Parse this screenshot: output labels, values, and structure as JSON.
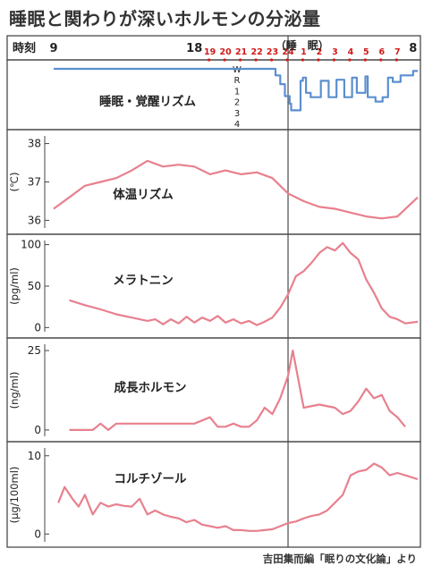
{
  "title": "睡眠と関わりが深いホルモンの分泌量",
  "credit": "吉田集而編「眠りの文化論」より",
  "colors": {
    "frame": "#4a4a4a",
    "sleep_line": "#5b8fcf",
    "hormone_line": "#e8808e",
    "red_tick": "#d01a1a"
  },
  "time_axis": {
    "label": "時刻",
    "sleep_label": "（睡　眠）",
    "black_ticks": [
      {
        "label": "9",
        "t": 9
      },
      {
        "label": "18",
        "t": 18
      },
      {
        "label": "8",
        "t": 32
      }
    ],
    "red_ticks": [
      {
        "label": "19",
        "t": 19
      },
      {
        "label": "20",
        "t": 20
      },
      {
        "label": "21",
        "t": 21
      },
      {
        "label": "22",
        "t": 22
      },
      {
        "label": "23",
        "t": 23
      },
      {
        "label": "24",
        "t": 24
      },
      {
        "label": "1",
        "t": 25
      },
      {
        "label": "2",
        "t": 26
      },
      {
        "label": "3",
        "t": 27
      },
      {
        "label": "4",
        "t": 28
      },
      {
        "label": "5",
        "t": 29
      },
      {
        "label": "6",
        "t": 30
      },
      {
        "label": "7",
        "t": 31
      }
    ],
    "sleep_start": 24
  },
  "chart_data": [
    {
      "type": "line",
      "panel": "sleep",
      "label": "睡眠・覚醒リズム",
      "ylabel": "",
      "stage_labels": [
        "W",
        "R",
        "1",
        "2",
        "3",
        "4"
      ],
      "ylim": [
        0,
        5
      ],
      "x": [
        9,
        23.2,
        23.2,
        23.5,
        23.5,
        23.8,
        23.8,
        24.1,
        24.1,
        24.2,
        24.2,
        24.8,
        24.8,
        24.95,
        24.95,
        25.15,
        25.15,
        25.45,
        25.45,
        25.6,
        25.6,
        26.1,
        26.1,
        26.6,
        26.6,
        27.1,
        27.1,
        27.6,
        27.6,
        28.1,
        28.1,
        28.4,
        28.4,
        28.95,
        28.95,
        29.1,
        29.1,
        29.6,
        29.6,
        30.05,
        30.05,
        30.4,
        30.4,
        30.7,
        30.7,
        31.2,
        31.2,
        32.0,
        32.0,
        32.3
      ],
      "values": [
        0,
        0,
        0.6,
        0.6,
        1.4,
        1.4,
        2.5,
        2.5,
        3.2,
        3.2,
        3.8,
        3.8,
        1.1,
        1.1,
        0.8,
        0.8,
        2.2,
        2.2,
        2.6,
        2.6,
        2.6,
        2.6,
        1.1,
        1.1,
        2.6,
        2.6,
        1.0,
        1.0,
        2.6,
        2.6,
        0.8,
        0.8,
        2.2,
        2.2,
        0.7,
        0.7,
        2.6,
        2.6,
        3.0,
        3.0,
        2.6,
        2.6,
        0.8,
        0.8,
        1.2,
        1.2,
        0.6,
        0.6,
        0.2,
        0.2
      ]
    },
    {
      "type": "line",
      "panel": "temperature",
      "label": "体温リズム",
      "ylabel": "(℃)",
      "yticks": [
        36,
        37,
        38
      ],
      "ylim": [
        35.8,
        38.2
      ],
      "x": [
        9,
        10,
        11,
        12,
        13,
        14,
        15,
        16,
        17,
        18,
        19,
        20,
        21,
        22,
        23,
        24,
        25,
        26,
        27,
        28,
        29,
        30,
        31,
        32.3
      ],
      "values": [
        36.3,
        36.6,
        36.9,
        37.0,
        37.1,
        37.3,
        37.55,
        37.4,
        37.45,
        37.4,
        37.2,
        37.3,
        37.2,
        37.25,
        37.1,
        36.7,
        36.5,
        36.35,
        36.3,
        36.2,
        36.1,
        36.05,
        36.1,
        36.6
      ]
    },
    {
      "type": "line",
      "panel": "melatonin",
      "label": "メラトニン",
      "ylabel": "(pg/ml)",
      "yticks": [
        0,
        50,
        100
      ],
      "ylim": [
        -5,
        105
      ],
      "x": [
        10,
        11,
        12,
        13,
        14,
        15,
        15.5,
        16,
        16.5,
        17,
        17.5,
        18,
        18.5,
        19,
        19.5,
        20,
        20.5,
        21,
        21.5,
        22,
        22.5,
        23,
        23.5,
        24,
        24.5,
        25,
        25.5,
        26,
        26.5,
        27,
        27.5,
        28,
        28.5,
        29,
        29.5,
        30,
        30.5,
        31,
        31.5,
        32.3
      ],
      "values": [
        33,
        27,
        22,
        16,
        12,
        8,
        10,
        4,
        10,
        5,
        13,
        6,
        12,
        8,
        14,
        6,
        10,
        5,
        8,
        3,
        7,
        12,
        24,
        40,
        62,
        68,
        78,
        90,
        97,
        93,
        102,
        90,
        82,
        58,
        42,
        23,
        13,
        10,
        5,
        7
      ]
    },
    {
      "type": "line",
      "panel": "growth_hormone",
      "label": "成長ホルモン",
      "ylabel": "(ng/ml)",
      "yticks": [
        0,
        25
      ],
      "ylim": [
        -2,
        27
      ],
      "x": [
        10,
        11,
        11.5,
        12,
        12.5,
        13,
        14,
        15,
        16,
        17,
        18,
        19,
        19.5,
        20,
        20.5,
        21,
        21.5,
        22,
        22.5,
        23,
        23.5,
        24,
        24.3,
        25,
        26,
        27,
        27.5,
        28,
        28.5,
        29,
        29.5,
        30,
        30.5,
        31,
        31.5
      ],
      "values": [
        0,
        0,
        0,
        2,
        0,
        2,
        2,
        2,
        2,
        2,
        2,
        4,
        1,
        1,
        2,
        1,
        1,
        3,
        7,
        5,
        10,
        17,
        25,
        7,
        8,
        7,
        5,
        6,
        9,
        13,
        10,
        11,
        6,
        4,
        1
      ]
    },
    {
      "type": "line",
      "panel": "cortisol",
      "label": "コルチゾール",
      "ylabel": "(μg/100ml)",
      "yticks": [
        0,
        10
      ],
      "ylim": [
        -1,
        11
      ],
      "x": [
        9.3,
        9.7,
        10.2,
        10.6,
        11,
        11.5,
        12,
        12.5,
        13,
        13.5,
        14,
        14.5,
        15,
        15.5,
        16,
        16.5,
        17,
        17.5,
        18,
        18.5,
        19,
        19.5,
        20,
        20.5,
        21,
        21.5,
        22,
        22.5,
        23,
        23.5,
        24,
        24.5,
        25,
        25.5,
        26,
        26.5,
        27,
        27.5,
        28,
        28.5,
        29,
        29.5,
        30,
        30.5,
        31,
        31.5,
        32.3
      ],
      "values": [
        4,
        6,
        4.5,
        3.5,
        5,
        2.5,
        4,
        3.5,
        3.8,
        3.6,
        3.5,
        4.5,
        2.5,
        3,
        2.5,
        2.2,
        2,
        1.5,
        1.8,
        1.2,
        1,
        0.8,
        1,
        0.5,
        0.5,
        0.4,
        0.4,
        0.5,
        0.6,
        1,
        1.4,
        1.6,
        2,
        2.3,
        2.5,
        3,
        4,
        5,
        7.5,
        8,
        8.2,
        9,
        8.5,
        7.5,
        7.8,
        7.5,
        7
      ]
    }
  ]
}
